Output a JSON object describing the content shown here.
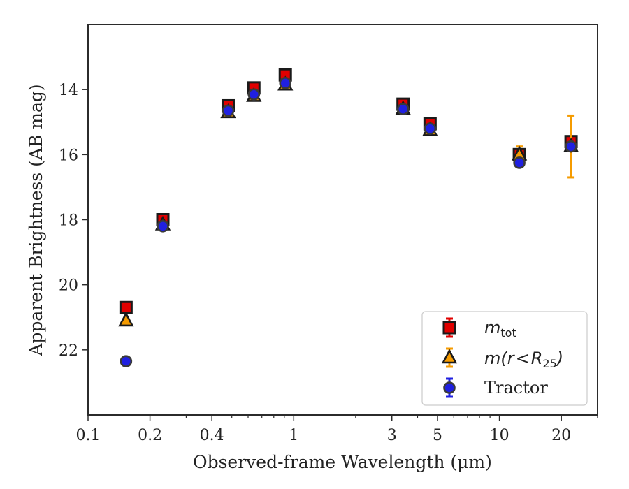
{
  "chart_data": {
    "type": "scatter",
    "xlabel": "Observed-frame Wavelength (μm)",
    "ylabel": "Apparent Brightness (AB mag)",
    "xscale": "log",
    "xlim": [
      0.1,
      30
    ],
    "ylim": [
      24.0,
      12.0
    ],
    "y_inverted": true,
    "x_ticks": [
      0.1,
      0.2,
      0.4,
      1,
      3,
      5,
      10,
      20
    ],
    "x_tick_labels": [
      "0.1",
      "0.2",
      "0.4",
      "1",
      "3",
      "5",
      "10",
      "20"
    ],
    "y_ticks": [
      14,
      16,
      18,
      20,
      22
    ],
    "y_tick_labels": [
      "14",
      "16",
      "18",
      "20",
      "22"
    ],
    "grid": false,
    "legend_position": "lower-right",
    "series": [
      {
        "name": "m_tot",
        "marker": "square",
        "color": "#e00000",
        "x": [
          0.153,
          0.231,
          0.48,
          0.64,
          0.91,
          3.4,
          4.6,
          12.5,
          22.3
        ],
        "y": [
          20.7,
          18.0,
          14.5,
          13.95,
          13.55,
          14.45,
          15.05,
          16.0,
          15.6
        ],
        "yerr": [
          0.05,
          0.05,
          0.05,
          0.05,
          0.05,
          0.05,
          0.05,
          0.05,
          0.1
        ]
      },
      {
        "name": "m(r<R25)",
        "marker": "triangle",
        "color": "#f59b00",
        "x": [
          0.153,
          0.231,
          0.48,
          0.64,
          0.91,
          3.4,
          4.6,
          12.5,
          22.3
        ],
        "y": [
          21.1,
          18.15,
          14.7,
          14.2,
          13.85,
          14.6,
          15.25,
          16.0,
          15.75
        ],
        "yerr": [
          0.05,
          0.05,
          0.05,
          0.05,
          0.05,
          0.05,
          0.05,
          0.25,
          0.95
        ]
      },
      {
        "name": "Tractor",
        "marker": "circle",
        "color": "#2020e0",
        "x": [
          0.153,
          0.231,
          0.48,
          0.64,
          0.91,
          3.4,
          4.6,
          12.5,
          22.3
        ],
        "y": [
          22.35,
          18.2,
          14.65,
          14.15,
          13.8,
          14.6,
          15.2,
          16.25,
          15.75
        ],
        "yerr": [
          0.05,
          0.05,
          0.05,
          0.05,
          0.05,
          0.05,
          0.05,
          0.05,
          0.05
        ]
      }
    ]
  }
}
